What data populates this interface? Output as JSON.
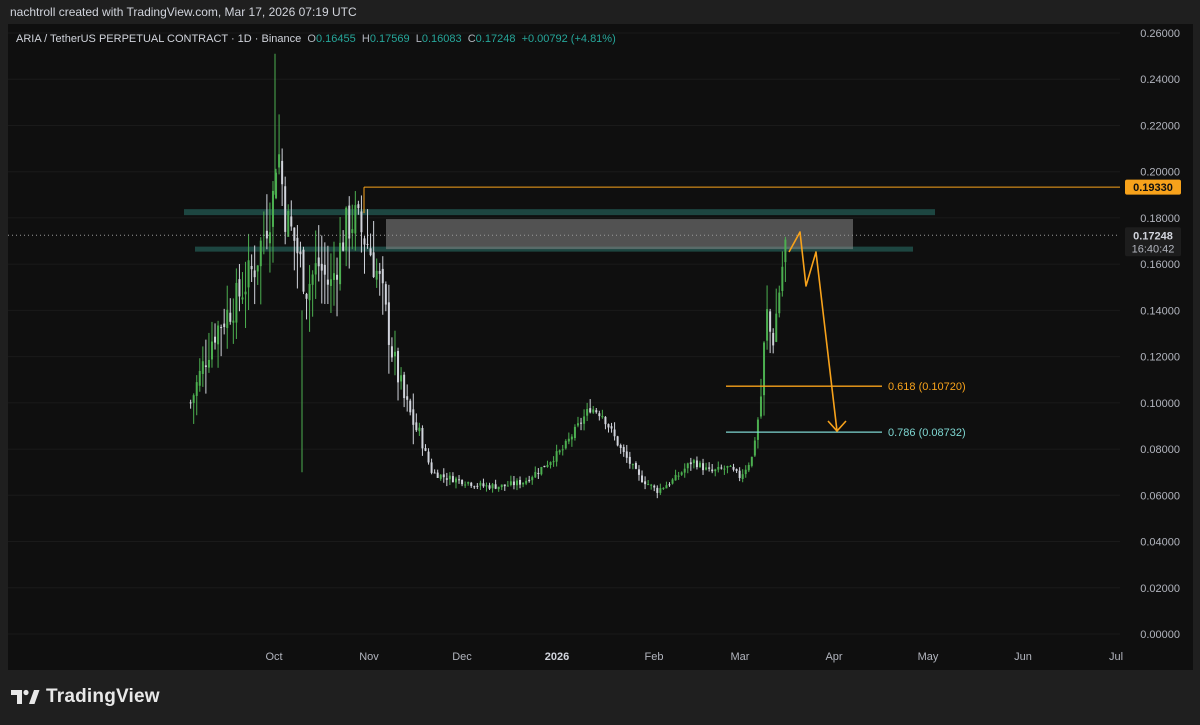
{
  "header": {
    "credit": "nachtroll created with TradingView.com, Mar 17, 2026 07:19 UTC"
  },
  "legend": {
    "symbol": "ARIA / TetherUS PERPETUAL CONTRACT · 1D · Binance",
    "open_label": "O",
    "open": "0.16455",
    "high_label": "H",
    "high": "0.17569",
    "low_label": "L",
    "low": "0.16083",
    "close_label": "C",
    "close": "0.17248",
    "change": "+0.00792 (+4.81%)"
  },
  "price_axis": {
    "ticks": [
      "0.26000",
      "0.24000",
      "0.22000",
      "0.20000",
      "0.18000",
      "0.16000",
      "0.14000",
      "0.12000",
      "0.10000",
      "0.08000",
      "0.06000",
      "0.04000",
      "0.02000",
      "0.00000"
    ],
    "last_price": "0.17248",
    "countdown": "16:40:42",
    "resistance_price": "0.19330"
  },
  "time_axis": {
    "ticks": [
      "Oct",
      "Nov",
      "Dec",
      "2026",
      "Feb",
      "Mar",
      "Apr",
      "May",
      "Jun",
      "Jul"
    ]
  },
  "fib_levels": [
    {
      "label": "0.618 (0.10720)",
      "color": "#f7a21b"
    },
    {
      "label": "0.786 (0.08732)",
      "color": "#7ed6d1"
    }
  ],
  "colors": {
    "up": "#4caf50",
    "down": "#d1d4dc",
    "resistance": "#f7a21b",
    "zone": "#1f4a44",
    "projection": "#f7a21b"
  },
  "brand": {
    "name": "TradingView"
  },
  "chart_data": {
    "type": "candlestick",
    "title": "ARIA / TetherUS PERPETUAL CONTRACT · 1D · Binance",
    "ylim": [
      0,
      0.26
    ],
    "x_ticks": [
      "Oct",
      "Nov",
      "Dec",
      "2026",
      "Feb",
      "Mar",
      "Apr",
      "May",
      "Jun",
      "Jul"
    ],
    "series": [
      {
        "name": "ARIA/USDT 1D close (approx.)",
        "points": [
          [
            "Sep 12",
            0.1
          ],
          [
            "Sep 17",
            0.13
          ],
          [
            "Sep 22",
            0.145
          ],
          [
            "Sep 26",
            0.16
          ],
          [
            "Sep 30",
            0.19
          ],
          [
            "Oct 2",
            0.215
          ],
          [
            "Oct 5",
            0.18
          ],
          [
            "Oct 8",
            0.17
          ],
          [
            "Oct 12",
            0.15
          ],
          [
            "Oct 16",
            0.16
          ],
          [
            "Oct 20",
            0.15
          ],
          [
            "Oct 25",
            0.175
          ],
          [
            "Oct 28",
            0.18
          ],
          [
            "Nov 1",
            0.168
          ],
          [
            "Nov 5",
            0.15
          ],
          [
            "Nov 9",
            0.12
          ],
          [
            "Nov 13",
            0.1
          ],
          [
            "Nov 18",
            0.085
          ],
          [
            "Nov 22",
            0.07
          ],
          [
            "Nov 26",
            0.068
          ],
          [
            "Dec 2",
            0.066
          ],
          [
            "Dec 8",
            0.064
          ],
          [
            "Dec 15",
            0.064
          ],
          [
            "Dec 22",
            0.066
          ],
          [
            "Dec 28",
            0.072
          ],
          [
            "Jan 3",
            0.08
          ],
          [
            "Jan 8",
            0.09
          ],
          [
            "Jan 12",
            0.098
          ],
          [
            "Jan 16",
            0.095
          ],
          [
            "Jan 22",
            0.08
          ],
          [
            "Jan 28",
            0.068
          ],
          [
            "Feb 2",
            0.062
          ],
          [
            "Feb 8",
            0.067
          ],
          [
            "Feb 14",
            0.075
          ],
          [
            "Feb 20",
            0.07
          ],
          [
            "Feb 26",
            0.072
          ],
          [
            "Mar 1",
            0.068
          ],
          [
            "Mar 5",
            0.076
          ],
          [
            "Mar 8",
            0.1
          ],
          [
            "Mar 10",
            0.14
          ],
          [
            "Mar 12",
            0.125
          ],
          [
            "Mar 14",
            0.145
          ],
          [
            "Mar 16",
            0.165
          ],
          [
            "Mar 17",
            0.17248
          ]
        ]
      }
    ],
    "annotations": {
      "resistance_line": 0.1933,
      "zone_upper": 0.1825,
      "zone_lower": 0.1665,
      "fib_0618": 0.1072,
      "fib_0786": 0.08732
    }
  }
}
